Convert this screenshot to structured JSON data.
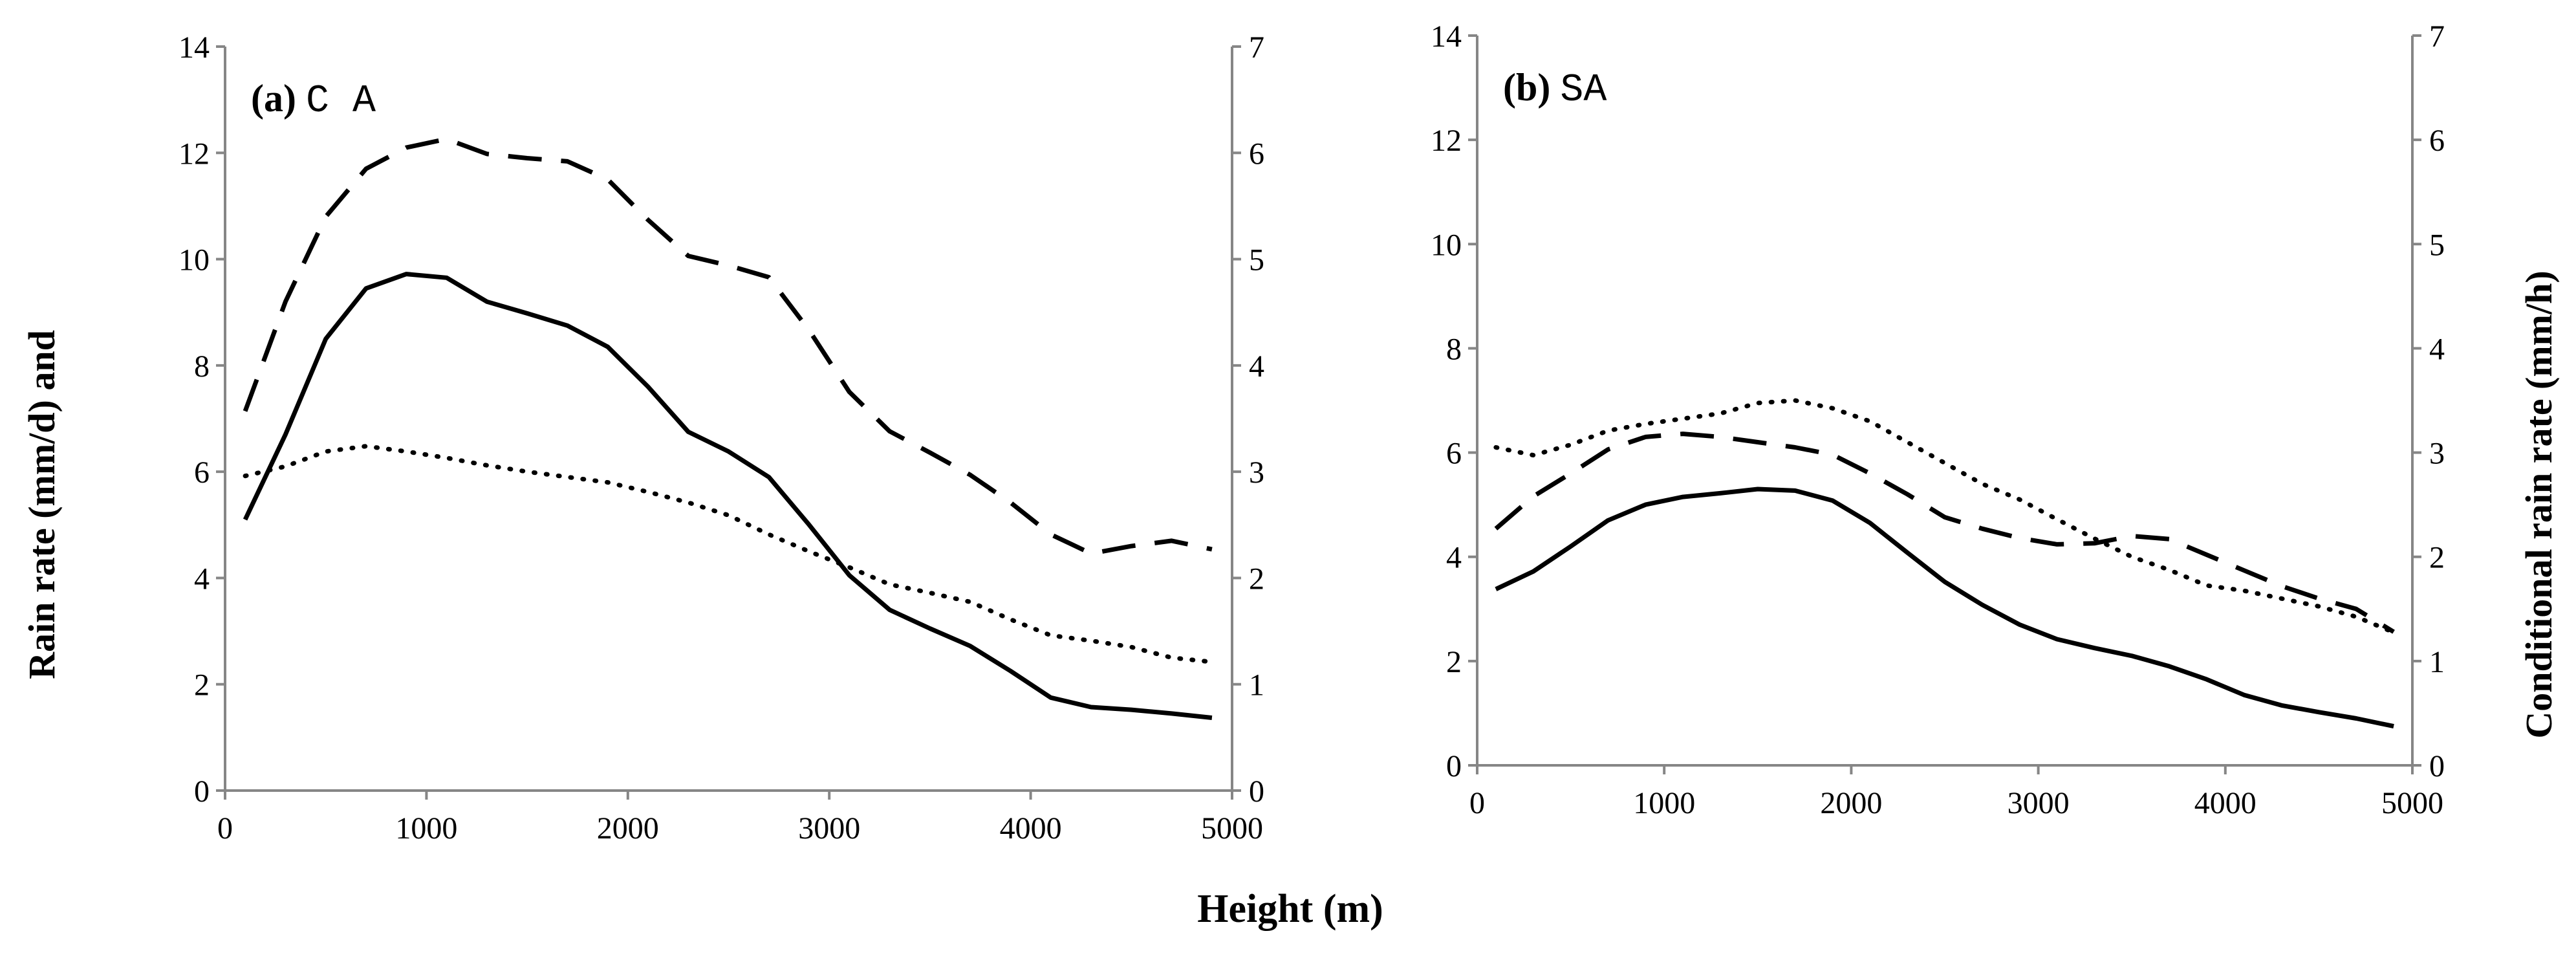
{
  "x_axis_label": "Height (m)",
  "left_axis_label": "Rain rate (mm/d) and",
  "right_axis_label": "Conditional rain rate (mm/h)",
  "chart_data": [
    {
      "type": "line",
      "panel_tag": "(a)",
      "panel_name": "C A",
      "x": [
        100,
        300,
        500,
        700,
        900,
        1100,
        1300,
        1500,
        1700,
        1900,
        2100,
        2300,
        2500,
        2700,
        2900,
        3100,
        3300,
        3500,
        3700,
        3900,
        4100,
        4300,
        4500,
        4700,
        4900
      ],
      "xlim": [
        0,
        5000
      ],
      "xticks": [
        "0",
        "1000",
        "2000",
        "3000",
        "4000",
        "5000"
      ],
      "ylim_left": [
        0,
        14
      ],
      "yticks_left": [
        "0",
        "2",
        "4",
        "6",
        "8",
        "10",
        "12",
        "14"
      ],
      "ylim_right": [
        0,
        7
      ],
      "yticks_right": [
        "0",
        "1",
        "2",
        "3",
        "4",
        "5",
        "6",
        "7"
      ],
      "series": [
        {
          "name": "solid",
          "axis": "left",
          "style": "solid",
          "values": [
            5.1,
            6.7,
            8.5,
            9.45,
            9.72,
            9.65,
            9.2,
            8.98,
            8.75,
            8.35,
            7.6,
            6.75,
            6.38,
            5.9,
            5.0,
            4.05,
            3.4,
            3.05,
            2.72,
            2.25,
            1.75,
            1.57,
            1.52,
            1.45,
            1.37
          ]
        },
        {
          "name": "dashed",
          "axis": "right",
          "style": "dashed",
          "values": [
            3.57,
            4.6,
            5.4,
            5.85,
            6.05,
            6.13,
            5.99,
            5.95,
            5.92,
            5.75,
            5.37,
            5.03,
            4.94,
            4.83,
            4.33,
            3.75,
            3.38,
            3.18,
            2.97,
            2.71,
            2.41,
            2.23,
            2.3,
            2.35,
            2.27
          ]
        },
        {
          "name": "dotted",
          "axis": "left",
          "style": "dotted",
          "values": [
            5.92,
            6.1,
            6.38,
            6.48,
            6.38,
            6.26,
            6.12,
            6.0,
            5.9,
            5.8,
            5.62,
            5.42,
            5.18,
            4.82,
            4.5,
            4.2,
            3.88,
            3.72,
            3.55,
            3.22,
            2.92,
            2.82,
            2.7,
            2.5,
            2.42
          ]
        }
      ]
    },
    {
      "type": "line",
      "panel_tag": "(b)",
      "panel_name": "SA",
      "x": [
        100,
        300,
        500,
        700,
        900,
        1100,
        1300,
        1500,
        1700,
        1900,
        2100,
        2300,
        2500,
        2700,
        2900,
        3100,
        3300,
        3500,
        3700,
        3900,
        4100,
        4300,
        4500,
        4700,
        4900
      ],
      "xlim": [
        0,
        5000
      ],
      "xticks": [
        "0",
        "1000",
        "2000",
        "3000",
        "4000",
        "5000"
      ],
      "ylim_left": [
        0,
        14
      ],
      "yticks_left": [
        "0",
        "2",
        "4",
        "6",
        "8",
        "10",
        "12",
        "14"
      ],
      "ylim_right": [
        0,
        7
      ],
      "yticks_right": [
        "0",
        "1",
        "2",
        "3",
        "4",
        "5",
        "6",
        "7"
      ],
      "series": [
        {
          "name": "solid",
          "axis": "left",
          "style": "solid",
          "values": [
            3.38,
            3.72,
            4.2,
            4.7,
            5.0,
            5.15,
            5.22,
            5.3,
            5.27,
            5.08,
            4.65,
            4.08,
            3.52,
            3.08,
            2.7,
            2.42,
            2.25,
            2.1,
            1.9,
            1.65,
            1.35,
            1.15,
            1.02,
            0.9,
            0.75
          ]
        },
        {
          "name": "dashed",
          "axis": "right",
          "style": "dashed",
          "values": [
            2.27,
            2.58,
            2.8,
            3.03,
            3.15,
            3.18,
            3.15,
            3.1,
            3.05,
            2.98,
            2.8,
            2.6,
            2.38,
            2.27,
            2.18,
            2.12,
            2.13,
            2.2,
            2.17,
            2.02,
            1.87,
            1.72,
            1.6,
            1.5,
            1.28
          ]
        },
        {
          "name": "dotted",
          "axis": "left",
          "style": "dotted",
          "values": [
            6.1,
            5.95,
            6.15,
            6.42,
            6.55,
            6.65,
            6.75,
            6.95,
            7.0,
            6.85,
            6.6,
            6.2,
            5.8,
            5.4,
            5.1,
            4.72,
            4.35,
            4.0,
            3.75,
            3.45,
            3.35,
            3.2,
            3.05,
            2.85,
            2.55
          ]
        }
      ]
    }
  ]
}
